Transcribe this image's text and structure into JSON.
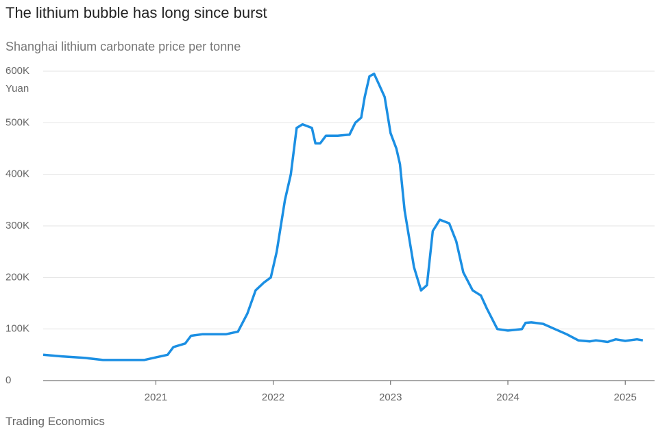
{
  "chart_data": {
    "type": "line",
    "title": "The lithium bubble has long since burst",
    "subtitle": "Shanghai lithium carbonate price per tonne",
    "y_unit": "Yuan",
    "source": "Trading Economics",
    "x": [
      2020.04,
      2020.2,
      2020.4,
      2020.55,
      2020.9,
      2021.0,
      2021.1,
      2021.15,
      2021.25,
      2021.3,
      2021.4,
      2021.6,
      2021.7,
      2021.78,
      2021.85,
      2021.92,
      2021.98,
      2022.03,
      2022.1,
      2022.15,
      2022.2,
      2022.25,
      2022.33,
      2022.36,
      2022.4,
      2022.45,
      2022.55,
      2022.65,
      2022.7,
      2022.75,
      2022.78,
      2022.82,
      2022.86,
      2022.9,
      2022.95,
      2023.0,
      2023.05,
      2023.08,
      2023.12,
      2023.2,
      2023.26,
      2023.31,
      2023.36,
      2023.42,
      2023.5,
      2023.56,
      2023.62,
      2023.7,
      2023.77,
      2023.82,
      2023.91,
      2024.0,
      2024.12,
      2024.15,
      2024.2,
      2024.3,
      2024.4,
      2024.5,
      2024.6,
      2024.7,
      2024.75,
      2024.85,
      2024.92,
      2025.0,
      2025.1,
      2025.15
    ],
    "series": [
      {
        "name": "Lithium carbonate",
        "color": "#1b8fe3",
        "values": [
          50000,
          47000,
          44000,
          40000,
          40000,
          45000,
          50000,
          65000,
          72000,
          87000,
          90000,
          90000,
          95000,
          130000,
          175000,
          190000,
          200000,
          250000,
          350000,
          400000,
          490000,
          497000,
          490000,
          460000,
          460000,
          475000,
          475000,
          477000,
          500000,
          510000,
          550000,
          590000,
          595000,
          575000,
          550000,
          480000,
          450000,
          420000,
          330000,
          220000,
          175000,
          185000,
          290000,
          312000,
          305000,
          270000,
          210000,
          175000,
          165000,
          140000,
          100000,
          97000,
          100000,
          112000,
          113000,
          110000,
          100000,
          90000,
          78000,
          76000,
          78000,
          75000,
          80000,
          77000,
          80000,
          78000
        ]
      }
    ],
    "xlim": [
      2020.04,
      2025.25
    ],
    "xticks": [
      2021,
      2022,
      2023,
      2024,
      2025
    ],
    "ylim": [
      0,
      600000
    ],
    "yticks": [
      0,
      {
        "value": 100000,
        "label": "100K"
      },
      {
        "value": 200000,
        "label": "200K"
      },
      {
        "value": 300000,
        "label": "300K"
      },
      {
        "value": 400000,
        "label": "400K"
      },
      {
        "value": 500000,
        "label": "500K"
      },
      {
        "value": 600000,
        "label": "600K"
      }
    ],
    "grid": true
  }
}
